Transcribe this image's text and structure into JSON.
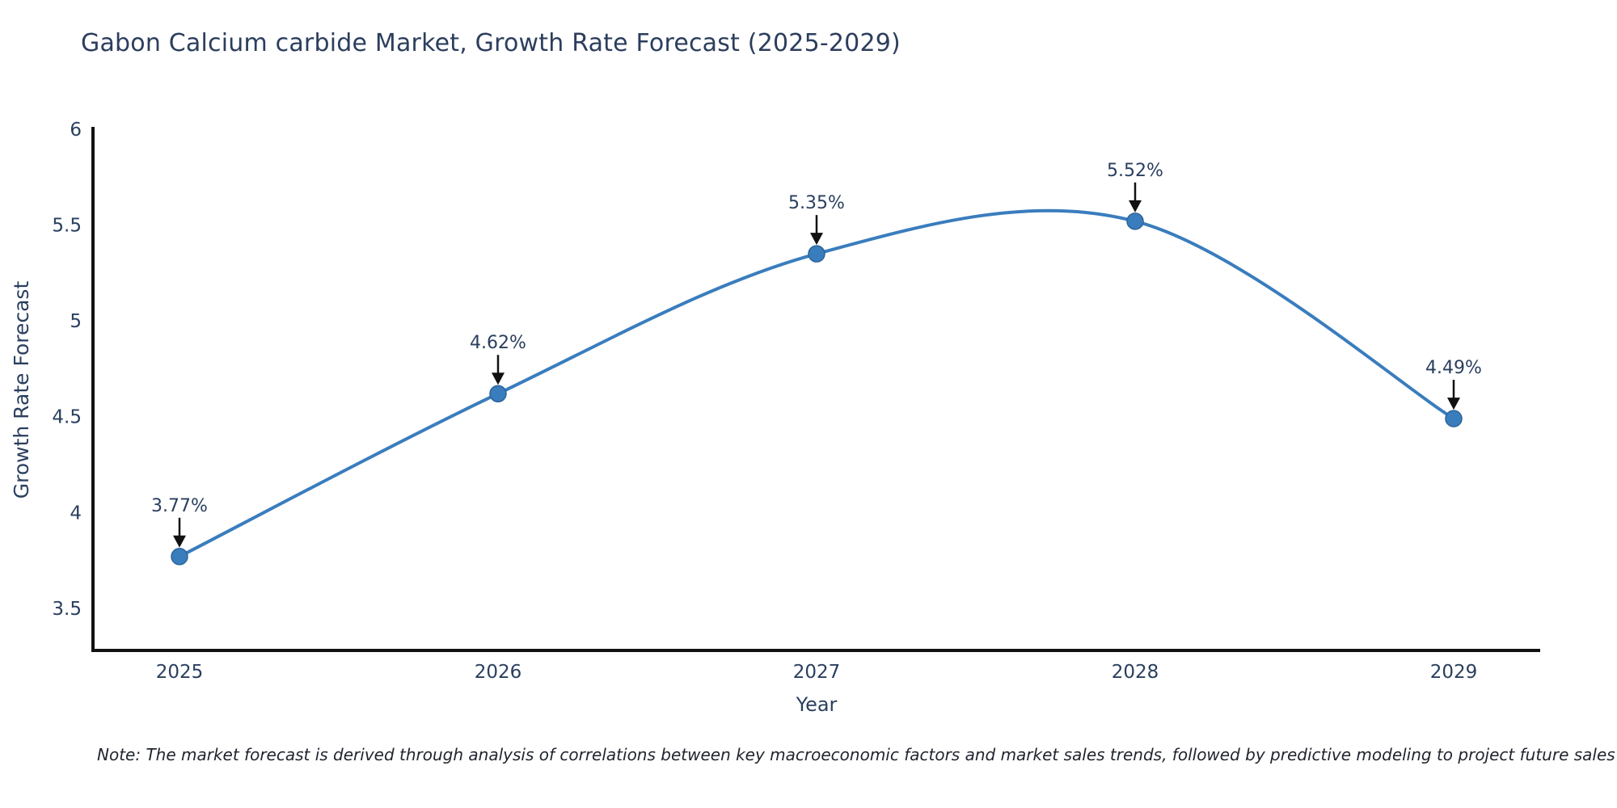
{
  "page": {
    "note": "Note: The market forecast is derived through analysis of correlations between key macroeconomic factors and market sales trends, followed by predictive modeling to project future sales"
  },
  "chart_data": {
    "type": "line",
    "title": "Gabon Calcium carbide Market, Growth Rate Forecast (2025-2029)",
    "xlabel": "Year",
    "ylabel": "Growth Rate Forecast",
    "categories": [
      "2025",
      "2026",
      "2027",
      "2028",
      "2029"
    ],
    "series": [
      {
        "name": "Growth Rate Forecast",
        "values": [
          3.77,
          4.62,
          5.35,
          5.52,
          4.49
        ],
        "labels": [
          "3.77%",
          "4.62%",
          "5.35%",
          "5.52%",
          "4.49%"
        ]
      }
    ],
    "ylim": [
      3.28,
      6.0
    ],
    "yticks": [
      3.5,
      4.0,
      4.5,
      5.0,
      5.5,
      6.0
    ],
    "ytick_labels": [
      "3.5",
      "4",
      "4.5",
      "5",
      "5.5",
      "6"
    ],
    "line_shape": "spline",
    "grid": false,
    "legend_position": "none",
    "annotation_style": "value labels with black down-arrows above each data point",
    "colors": {
      "line": "#3a7dbd",
      "marker": "#3a7dbd",
      "marker_edge": "#2e6499",
      "axis_line": "#111111",
      "text": "#2a3f5f",
      "arrow": "#111111",
      "background": "#ffffff"
    }
  }
}
